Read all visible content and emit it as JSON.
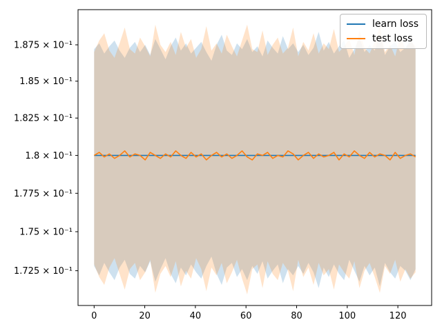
{
  "figure": {
    "background": "#ffffff",
    "axes_edge_color": "#000000",
    "tick_label_color": "#000000"
  },
  "legend": {
    "position": "upper right"
  },
  "chart_data": {
    "type": "line",
    "title": "",
    "xlabel": "",
    "ylabel": "",
    "y_scale": "log",
    "grid": false,
    "x_ticks": [
      0,
      20,
      40,
      60,
      80,
      100,
      120
    ],
    "y_tick_values": [
      0.1875,
      0.185,
      0.1825,
      0.18,
      0.1775,
      0.175,
      0.1725
    ],
    "y_tick_labels": [
      "1.875 × 10⁻¹",
      "1.85 × 10⁻¹",
      "1.825 × 10⁻¹",
      "1.8 × 10⁻¹",
      "1.775 × 10⁻¹",
      "1.75 × 10⁻¹",
      "1.725 × 10⁻¹"
    ],
    "xlim": [
      -6.35,
      133.35
    ],
    "ylim": [
      0.1703,
      0.18995
    ],
    "x_start": 0,
    "x_end": 127,
    "n_points": 64,
    "band_alpha": 0.22,
    "series": [
      {
        "name": "learn loss",
        "color": "#1f77b4",
        "mean": 0.18,
        "band_upper": [
          0.1872,
          0.1876,
          0.1869,
          0.1874,
          0.1878,
          0.1871,
          0.1866,
          0.1873,
          0.1877,
          0.187,
          0.1875,
          0.1868,
          0.1879,
          0.1872,
          0.1865,
          0.1874,
          0.188,
          0.1871,
          0.1876,
          0.1869,
          0.1873,
          0.1877,
          0.187,
          0.1864,
          0.1875,
          0.1882,
          0.1871,
          0.1868,
          0.1876,
          0.1872,
          0.1879,
          0.187,
          0.1874,
          0.1867,
          0.1878,
          0.1873,
          0.1869,
          0.1881,
          0.1872,
          0.1876,
          0.187,
          0.1875,
          0.1868,
          0.1873,
          0.1884,
          0.1871,
          0.1877,
          0.1869,
          0.1874,
          0.1878,
          0.1866,
          0.1872,
          0.188,
          0.187,
          0.1875,
          0.1871,
          0.1883,
          0.1868,
          0.1874,
          0.1877,
          0.187,
          0.1873,
          0.1879,
          0.1872
        ],
        "band_lower": [
          0.1728,
          0.1722,
          0.173,
          0.1724,
          0.1719,
          0.1727,
          0.1732,
          0.1723,
          0.172,
          0.1728,
          0.1724,
          0.1731,
          0.1718,
          0.1726,
          0.1733,
          0.1723,
          0.1717,
          0.1727,
          0.1722,
          0.1729,
          0.1724,
          0.172,
          0.1728,
          0.1734,
          0.1723,
          0.1716,
          0.1727,
          0.173,
          0.1721,
          0.1726,
          0.1719,
          0.1728,
          0.1723,
          0.1731,
          0.172,
          0.1725,
          0.1729,
          0.1717,
          0.1726,
          0.1722,
          0.1728,
          0.1723,
          0.173,
          0.1724,
          0.1714,
          0.1727,
          0.1721,
          0.1729,
          0.1723,
          0.1719,
          0.1732,
          0.1725,
          0.1718,
          0.1728,
          0.1722,
          0.1727,
          0.1715,
          0.173,
          0.1724,
          0.172,
          0.1728,
          0.1725,
          0.1719,
          0.1726
        ]
      },
      {
        "name": "test loss",
        "color": "#ff7f0e",
        "mean": [
          0.18,
          0.1802,
          0.1799,
          0.1801,
          0.1798,
          0.18,
          0.1803,
          0.1799,
          0.1801,
          0.18,
          0.1797,
          0.1802,
          0.18,
          0.1798,
          0.1801,
          0.1799,
          0.1803,
          0.18,
          0.1798,
          0.1802,
          0.1799,
          0.1801,
          0.1797,
          0.18,
          0.1802,
          0.1799,
          0.1801,
          0.1798,
          0.18,
          0.1803,
          0.1799,
          0.1797,
          0.1801,
          0.18,
          0.1802,
          0.1798,
          0.18,
          0.1799,
          0.1803,
          0.1801,
          0.1797,
          0.18,
          0.1802,
          0.1798,
          0.1801,
          0.1799,
          0.18,
          0.1802,
          0.1797,
          0.1801,
          0.1799,
          0.1803,
          0.18,
          0.1798,
          0.1802,
          0.1799,
          0.1801,
          0.18,
          0.1797,
          0.1802,
          0.1798,
          0.18,
          0.1801,
          0.1799
        ],
        "band_upper": [
          0.187,
          0.1878,
          0.1883,
          0.1871,
          0.1866,
          0.1876,
          0.1887,
          0.1872,
          0.1869,
          0.188,
          0.1874,
          0.1867,
          0.1889,
          0.1875,
          0.187,
          0.1877,
          0.1868,
          0.1884,
          0.1873,
          0.1879,
          0.1866,
          0.1872,
          0.1888,
          0.1871,
          0.1876,
          0.1869,
          0.1882,
          0.1874,
          0.1867,
          0.1878,
          0.1889,
          0.1872,
          0.187,
          0.1885,
          0.1868,
          0.1875,
          0.188,
          0.1869,
          0.1873,
          0.1887,
          0.1867,
          0.1877,
          0.1871,
          0.1883,
          0.1869,
          0.1876,
          0.1872,
          0.1886,
          0.187,
          0.1874,
          0.1879,
          0.1868,
          0.1885,
          0.1873,
          0.1869,
          0.1877,
          0.1888,
          0.187,
          0.1875,
          0.1867,
          0.1881,
          0.1872,
          0.1878,
          0.1874
        ],
        "band_lower": [
          0.1729,
          0.1721,
          0.1716,
          0.1727,
          0.1733,
          0.1723,
          0.1713,
          0.1726,
          0.173,
          0.1719,
          0.1724,
          0.1732,
          0.1711,
          0.1723,
          0.1728,
          0.1721,
          0.1731,
          0.1715,
          0.1725,
          0.172,
          0.1733,
          0.1726,
          0.1712,
          0.1727,
          0.1722,
          0.173,
          0.1717,
          0.1724,
          0.1732,
          0.172,
          0.171,
          0.1726,
          0.1729,
          0.1714,
          0.1731,
          0.1723,
          0.1719,
          0.173,
          0.1725,
          0.1712,
          0.1732,
          0.1721,
          0.1727,
          0.1716,
          0.173,
          0.1722,
          0.1726,
          0.1713,
          0.1729,
          0.1724,
          0.172,
          0.1731,
          0.1714,
          0.1725,
          0.173,
          0.1721,
          0.1711,
          0.1728,
          0.1723,
          0.1732,
          0.1718,
          0.1726,
          0.172,
          0.1724
        ]
      }
    ]
  }
}
